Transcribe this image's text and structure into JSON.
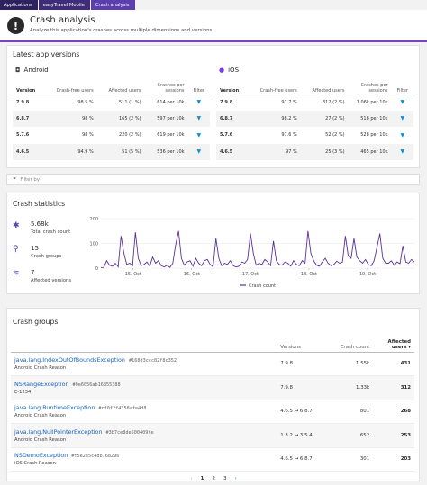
{
  "breadcrumb": [
    "Applications",
    "easyTravel Mobile",
    "Crash analysis"
  ],
  "header": {
    "title": "Crash analysis",
    "subtitle": "Analyze this application's crashes across multiple dimensions and versions."
  },
  "latest": {
    "title": "Latest app versions",
    "columns": [
      "Version",
      "Crash-free users",
      "Affected users",
      "Crashes per sessions",
      "Filter"
    ],
    "android": {
      "name": "Android",
      "rows": [
        {
          "version": "7.9.8",
          "free": "98.5 %",
          "affected": "511 (1 %)",
          "crashes": "614 per 10k"
        },
        {
          "version": "6.8.7",
          "free": "98 %",
          "affected": "165 (2 %)",
          "crashes": "597 per 10k"
        },
        {
          "version": "5.7.6",
          "free": "98 %",
          "affected": "220 (2 %)",
          "crashes": "619 per 10k"
        },
        {
          "version": "4.6.5",
          "free": "94.9 %",
          "affected": "51 (5 %)",
          "crashes": "536 per 10k"
        }
      ]
    },
    "ios": {
      "name": "iOS",
      "rows": [
        {
          "version": "7.9.8",
          "free": "97.7 %",
          "affected": "312 (2 %)",
          "crashes": "1.06k per 10k"
        },
        {
          "version": "6.8.7",
          "free": "98.2 %",
          "affected": "27 (2 %)",
          "crashes": "518 per 10k"
        },
        {
          "version": "5.7.6",
          "free": "97.6 %",
          "affected": "52 (2 %)",
          "crashes": "528 per 10k"
        },
        {
          "version": "4.6.5",
          "free": "97 %",
          "affected": "25 (3 %)",
          "crashes": "465 per 10k"
        }
      ]
    }
  },
  "filter": {
    "placeholder": "Filter by"
  },
  "stats": {
    "title": "Crash statistics",
    "items": [
      {
        "value": "5.68k",
        "label": "Total crash count"
      },
      {
        "value": "15",
        "label": "Crash groups"
      },
      {
        "value": "7",
        "label": "Affected versions"
      }
    ]
  },
  "chart_data": {
    "type": "line",
    "ylim": [
      0,
      200
    ],
    "yticks": [
      0,
      100,
      200
    ],
    "xticks": [
      "15. Oct",
      "16. Oct",
      "17. Oct",
      "18. Oct",
      "19. Oct"
    ],
    "grid": true,
    "legend": "bottom-center",
    "series": [
      {
        "name": "Crash count",
        "color": "#5b2f9e",
        "values": [
          2,
          3,
          30,
          12,
          8,
          20,
          5,
          130,
          60,
          15,
          20,
          10,
          145,
          40,
          10,
          15,
          25,
          8,
          45,
          20,
          30,
          10,
          5,
          12,
          3,
          20,
          95,
          150,
          40,
          12,
          25,
          30,
          8,
          40,
          20,
          10,
          30,
          35,
          15,
          5,
          120,
          40,
          10,
          20,
          15,
          30,
          10,
          5,
          8,
          25,
          20,
          35,
          140,
          60,
          12,
          20,
          15,
          35,
          25,
          10,
          110,
          30,
          15,
          12,
          25,
          20,
          8,
          30,
          15,
          10,
          30,
          20,
          150,
          60,
          30,
          12,
          8,
          25,
          40,
          20,
          10,
          15,
          28,
          20,
          25,
          130,
          50,
          40,
          120,
          45,
          30,
          20,
          35,
          15,
          10,
          30,
          85,
          140,
          40,
          20,
          20,
          30,
          12,
          25,
          18,
          90,
          25,
          20,
          35,
          25
        ]
      }
    ]
  },
  "groups": {
    "title": "Crash groups",
    "columns": [
      "",
      "Versions",
      "Crash count",
      "Affected users"
    ],
    "rows": [
      {
        "name": "java.lang.IndexOutOfBoundsException",
        "hash": "#168d3ccc82f8c352",
        "reason": "Android Crash Reason",
        "versions": "7.9.8",
        "count": "1.55k",
        "affected": "431"
      },
      {
        "name": "NSRangeException",
        "hash": "#0e6056ab16855388",
        "reason": "E-1234",
        "versions": "7.9.8",
        "count": "1.33k",
        "affected": "312"
      },
      {
        "name": "java.lang.RuntimeException",
        "hash": "#cf0f2f4358afe4d8",
        "reason": "Android Crash Reason",
        "versions": "4.6.5 → 6.8.7",
        "count": "801",
        "affected": "268"
      },
      {
        "name": "java.lang.NullPointerException",
        "hash": "#3b7ce8de500409fe",
        "reason": "Android Crash Reason",
        "versions": "1.3.2 → 3.5.4",
        "count": "652",
        "affected": "253"
      },
      {
        "name": "NSDemoException",
        "hash": "#f5e2e5c4db768296",
        "reason": "iOS Crash Reason",
        "versions": "4.6.5 → 6.8.7",
        "count": "301",
        "affected": "203"
      }
    ]
  },
  "pager": {
    "pages": [
      "1",
      "2",
      "3"
    ],
    "prev": "‹",
    "next": "›"
  }
}
